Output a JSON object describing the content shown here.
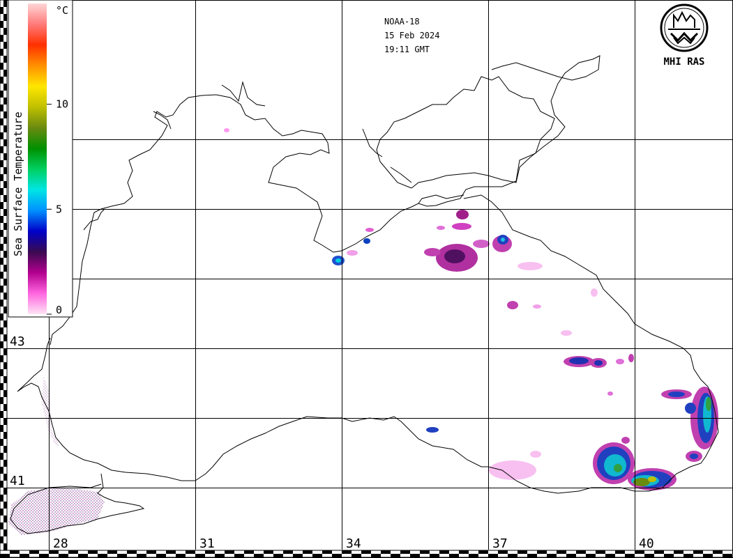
{
  "satellite": "NOAA-18",
  "date": "15 Feb 2024",
  "time": "19:11 GMT",
  "logo_text": "MHI RAS",
  "legend": {
    "title": "Sea Surface Temperature",
    "unit": "°C",
    "ticks": [
      {
        "value": 0,
        "label": "0"
      },
      {
        "value": 5,
        "label": "5"
      },
      {
        "value": 10,
        "label": "10"
      }
    ],
    "range": [
      0,
      14.8
    ],
    "colors": [
      "#ffe4f5",
      "#ff66e0",
      "#b3008f",
      "#3a0a50",
      "#0000c8",
      "#0090ff",
      "#00e5e5",
      "#00d060",
      "#009000",
      "#6a8a10",
      "#c0c000",
      "#ffe600",
      "#ff9000",
      "#ff3000",
      "#ff7a7a",
      "#ffd6d6"
    ]
  },
  "grid": {
    "longitudes": [
      {
        "value": 28,
        "label": "28"
      },
      {
        "value": 31,
        "label": "31"
      },
      {
        "value": 34,
        "label": "34"
      },
      {
        "value": 37,
        "label": "37"
      },
      {
        "value": 40,
        "label": "40"
      }
    ],
    "latitudes": [
      {
        "value": 41,
        "label": "41"
      },
      {
        "value": 43,
        "label": "43"
      }
    ]
  },
  "colors": {
    "coast": "#000000",
    "background": "#ffffff"
  }
}
